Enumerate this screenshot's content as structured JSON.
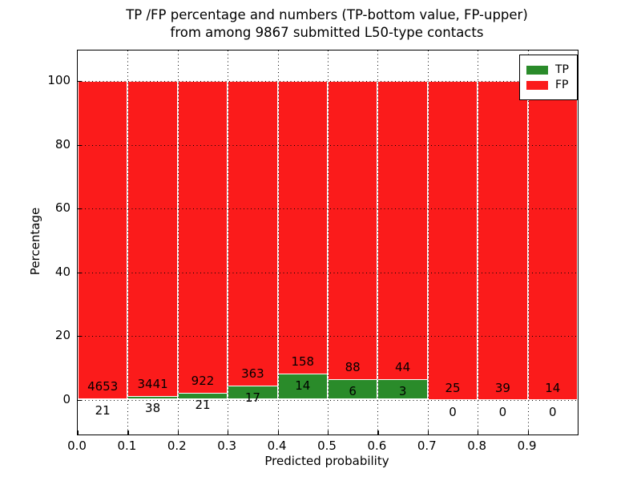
{
  "figure": {
    "title_line1": "TP /FP percentage and numbers (TP-bottom value, FP-upper)",
    "title_line2": "from among 9867 submitted L50-type contacts"
  },
  "axes": {
    "xlabel": "Predicted probability",
    "ylabel": "Percentage",
    "xticks": [
      "0.0",
      "0.1",
      "0.2",
      "0.3",
      "0.4",
      "0.5",
      "0.6",
      "0.7",
      "0.8",
      "0.9"
    ],
    "yticks": [
      "0",
      "20",
      "40",
      "60",
      "80",
      "100"
    ],
    "ytick_values": [
      0,
      20,
      40,
      60,
      80,
      100
    ]
  },
  "legend": {
    "items": [
      {
        "label": "TP",
        "color": "#2a8b2a"
      },
      {
        "label": "FP",
        "color": "#fb1b1b"
      }
    ]
  },
  "chart_data": {
    "type": "bar",
    "stacked": true,
    "normalized": "each bin scaled to 100%",
    "title": "TP /FP percentage and numbers (TP-bottom value, FP-upper) from among 9867 submitted L50-type contacts",
    "xlabel": "Predicted probability",
    "ylabel": "Percentage",
    "total_contacts": 9867,
    "bin_edges": [
      0.0,
      0.1,
      0.2,
      0.3,
      0.4,
      0.5,
      0.6,
      0.7,
      0.8,
      0.9,
      1.0
    ],
    "categories": [
      "0.0-0.1",
      "0.1-0.2",
      "0.2-0.3",
      "0.3-0.4",
      "0.4-0.5",
      "0.5-0.6",
      "0.6-0.7",
      "0.7-0.8",
      "0.8-0.9",
      "0.9-1.0"
    ],
    "series": [
      {
        "name": "TP",
        "color": "#2a8b2a",
        "counts": [
          21,
          38,
          21,
          17,
          14,
          6,
          3,
          0,
          0,
          0
        ],
        "percent": [
          0.45,
          1.09,
          2.23,
          4.47,
          8.14,
          6.38,
          6.38,
          0.0,
          0.0,
          0.0
        ]
      },
      {
        "name": "FP",
        "color": "#fb1b1b",
        "counts": [
          4653,
          3441,
          922,
          363,
          158,
          88,
          44,
          25,
          39,
          14
        ],
        "percent": [
          99.55,
          98.91,
          97.77,
          95.53,
          91.86,
          93.62,
          93.62,
          100.0,
          100.0,
          100.0
        ]
      }
    ],
    "xlim": [
      0.0,
      1.0
    ],
    "ylim": [
      -10.9,
      109.6
    ],
    "grid": "dotted, horizontal every 20%, vertical every 0.1",
    "legend_position": "upper right"
  }
}
